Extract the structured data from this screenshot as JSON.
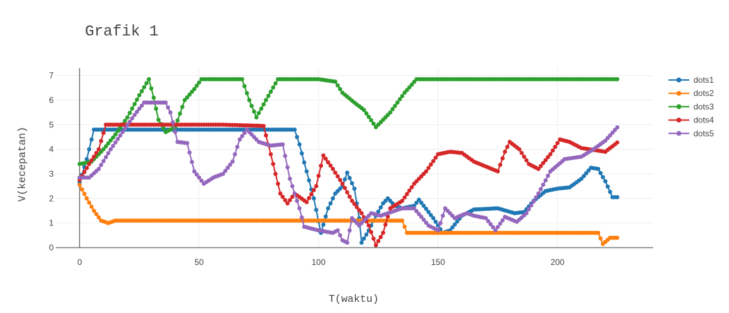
{
  "chart_data": {
    "type": "line",
    "title": "Grafik 1",
    "xlabel": "T(waktu)",
    "ylabel": "V(kecepatan)",
    "xlim": [
      -10,
      240
    ],
    "ylim": [
      0,
      7.3
    ],
    "xticks": [
      0,
      50,
      100,
      150,
      200
    ],
    "yticks": [
      0,
      1,
      2,
      3,
      4,
      5,
      6,
      7
    ],
    "grid": true,
    "legend": "top-right",
    "mode": "lines+markers",
    "x_range": [
      0,
      225
    ],
    "series": [
      {
        "name": "dots1",
        "color": "#1f77b4",
        "keypoints": [
          [
            0,
            2.65
          ],
          [
            3,
            3.6
          ],
          [
            6,
            4.8
          ],
          [
            90,
            4.8
          ],
          [
            92,
            4.2
          ],
          [
            95,
            3.1
          ],
          [
            98,
            2.0
          ],
          [
            101,
            0.6
          ],
          [
            104,
            1.6
          ],
          [
            107,
            2.2
          ],
          [
            110,
            2.5
          ],
          [
            112,
            3.05
          ],
          [
            115,
            2.4
          ],
          [
            117,
            1.2
          ],
          [
            118,
            0.2
          ],
          [
            121,
            0.7
          ],
          [
            124,
            1.3
          ],
          [
            127,
            1.8
          ],
          [
            129,
            2.0
          ],
          [
            132,
            1.7
          ],
          [
            135,
            1.6
          ],
          [
            140,
            1.7
          ],
          [
            142,
            1.95
          ],
          [
            148,
            1.2
          ],
          [
            152,
            0.6
          ],
          [
            155,
            0.7
          ],
          [
            160,
            1.3
          ],
          [
            165,
            1.55
          ],
          [
            175,
            1.6
          ],
          [
            182,
            1.4
          ],
          [
            186,
            1.45
          ],
          [
            190,
            1.9
          ],
          [
            195,
            2.3
          ],
          [
            200,
            2.4
          ],
          [
            205,
            2.45
          ],
          [
            210,
            2.8
          ],
          [
            214,
            3.25
          ],
          [
            217,
            3.2
          ],
          [
            220,
            2.7
          ],
          [
            223,
            2.05
          ],
          [
            226,
            2.05
          ]
        ]
      },
      {
        "name": "dots2",
        "color": "#ff7f0e",
        "keypoints": [
          [
            0,
            2.55
          ],
          [
            3,
            2.0
          ],
          [
            6,
            1.5
          ],
          [
            9,
            1.1
          ],
          [
            12,
            1.0
          ],
          [
            15,
            1.1
          ],
          [
            135,
            1.1
          ],
          [
            137,
            0.6
          ],
          [
            217,
            0.6
          ],
          [
            219,
            0.15
          ],
          [
            222,
            0.4
          ],
          [
            226,
            0.4
          ]
        ]
      },
      {
        "name": "dots3",
        "color": "#2ca02c",
        "keypoints": [
          [
            0,
            3.4
          ],
          [
            5,
            3.5
          ],
          [
            10,
            4.0
          ],
          [
            15,
            4.6
          ],
          [
            20,
            5.3
          ],
          [
            25,
            6.2
          ],
          [
            29,
            6.85
          ],
          [
            31,
            6.1
          ],
          [
            33,
            5.2
          ],
          [
            36,
            4.7
          ],
          [
            40,
            4.9
          ],
          [
            44,
            6.0
          ],
          [
            48,
            6.45
          ],
          [
            51,
            6.85
          ],
          [
            56,
            6.85
          ],
          [
            62,
            6.85
          ],
          [
            68,
            6.85
          ],
          [
            71,
            6.0
          ],
          [
            74,
            5.3
          ],
          [
            78,
            6.0
          ],
          [
            83,
            6.85
          ],
          [
            100,
            6.85
          ],
          [
            107,
            6.75
          ],
          [
            110,
            6.3
          ],
          [
            115,
            5.9
          ],
          [
            119,
            5.6
          ],
          [
            124,
            4.9
          ],
          [
            130,
            5.5
          ],
          [
            136,
            6.3
          ],
          [
            141,
            6.85
          ],
          [
            226,
            6.85
          ]
        ]
      },
      {
        "name": "dots4",
        "color": "#d62728",
        "keypoints": [
          [
            0,
            2.75
          ],
          [
            4,
            3.4
          ],
          [
            8,
            4.0
          ],
          [
            11,
            5.0
          ],
          [
            60,
            5.0
          ],
          [
            77,
            4.95
          ],
          [
            80,
            3.8
          ],
          [
            84,
            2.2
          ],
          [
            87,
            1.8
          ],
          [
            90,
            2.2
          ],
          [
            95,
            1.85
          ],
          [
            99,
            2.5
          ],
          [
            102,
            3.75
          ],
          [
            106,
            3.2
          ],
          [
            110,
            2.6
          ],
          [
            114,
            1.9
          ],
          [
            118,
            1.4
          ],
          [
            121,
            0.9
          ],
          [
            124,
            0.1
          ],
          [
            127,
            0.6
          ],
          [
            130,
            1.6
          ],
          [
            135,
            1.9
          ],
          [
            140,
            2.6
          ],
          [
            145,
            3.1
          ],
          [
            150,
            3.8
          ],
          [
            155,
            3.9
          ],
          [
            160,
            3.85
          ],
          [
            165,
            3.5
          ],
          [
            170,
            3.3
          ],
          [
            175,
            3.1
          ],
          [
            178,
            3.9
          ],
          [
            180,
            4.3
          ],
          [
            184,
            4.0
          ],
          [
            188,
            3.4
          ],
          [
            192,
            3.2
          ],
          [
            197,
            3.8
          ],
          [
            201,
            4.4
          ],
          [
            205,
            4.3
          ],
          [
            210,
            4.05
          ],
          [
            220,
            3.9
          ],
          [
            226,
            4.35
          ]
        ]
      },
      {
        "name": "dots5",
        "color": "#9467bd",
        "keypoints": [
          [
            0,
            2.85
          ],
          [
            4,
            2.85
          ],
          [
            8,
            3.2
          ],
          [
            13,
            4.0
          ],
          [
            18,
            4.7
          ],
          [
            23,
            5.4
          ],
          [
            27,
            5.9
          ],
          [
            36,
            5.9
          ],
          [
            38,
            5.5
          ],
          [
            41,
            4.3
          ],
          [
            45,
            4.25
          ],
          [
            48,
            3.1
          ],
          [
            52,
            2.6
          ],
          [
            56,
            2.85
          ],
          [
            60,
            3.0
          ],
          [
            64,
            3.5
          ],
          [
            67,
            4.4
          ],
          [
            70,
            4.8
          ],
          [
            75,
            4.3
          ],
          [
            80,
            4.15
          ],
          [
            85,
            4.2
          ],
          [
            88,
            2.8
          ],
          [
            92,
            1.6
          ],
          [
            94,
            0.85
          ],
          [
            100,
            0.7
          ],
          [
            106,
            0.6
          ],
          [
            108,
            0.7
          ],
          [
            110,
            0.3
          ],
          [
            112,
            0.2
          ],
          [
            114,
            1.2
          ],
          [
            117,
            0.9
          ],
          [
            122,
            1.4
          ],
          [
            126,
            1.3
          ],
          [
            135,
            1.6
          ],
          [
            140,
            1.6
          ],
          [
            146,
            0.9
          ],
          [
            150,
            0.7
          ],
          [
            153,
            1.6
          ],
          [
            157,
            1.2
          ],
          [
            162,
            1.4
          ],
          [
            165,
            1.3
          ],
          [
            170,
            1.2
          ],
          [
            174,
            0.7
          ],
          [
            178,
            1.25
          ],
          [
            183,
            1.05
          ],
          [
            187,
            1.4
          ],
          [
            192,
            2.2
          ],
          [
            197,
            3.1
          ],
          [
            203,
            3.6
          ],
          [
            210,
            3.7
          ],
          [
            215,
            4.0
          ],
          [
            220,
            4.35
          ],
          [
            226,
            5.0
          ]
        ]
      }
    ]
  }
}
